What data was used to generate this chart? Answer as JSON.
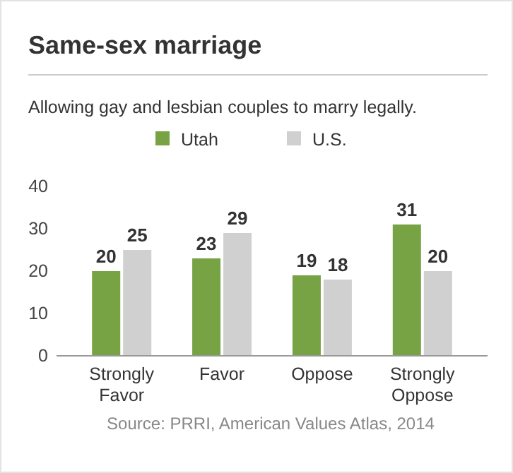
{
  "chart_data": {
    "type": "bar",
    "title": "Same-sex marriage",
    "subtitle": "Allowing gay and lesbian couples to marry legally.",
    "categories": [
      "Strongly\nFavor",
      "Favor",
      "Oppose",
      "Strongly\nOppose"
    ],
    "series": [
      {
        "name": "Utah",
        "color": "#77a345",
        "values": [
          20,
          23,
          19,
          31
        ]
      },
      {
        "name": "U.S.",
        "color": "#d0d0d0",
        "values": [
          25,
          29,
          18,
          20
        ]
      }
    ],
    "ylim": [
      0,
      40
    ],
    "yticks": [
      0,
      10,
      20,
      30,
      40
    ],
    "data_labels": true,
    "legend": "top",
    "grid": false,
    "annotations": [
      "Source: PRRI, American Values Atlas, 2014"
    ]
  }
}
